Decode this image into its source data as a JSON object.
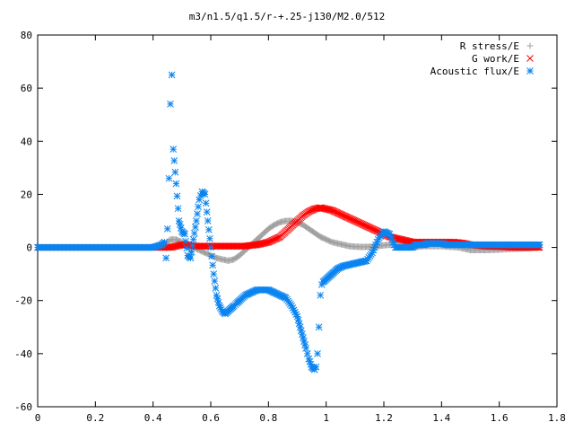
{
  "chart_data": {
    "type": "scatter",
    "title": "m3/n1.5/q1.5/r-+.25-j130/M2.0/512",
    "xlabel": "",
    "ylabel": "",
    "xlim": [
      0,
      1.8
    ],
    "ylim": [
      -60,
      80
    ],
    "xticks": [
      "0",
      "0.2",
      "0.4",
      "0.6",
      "0.8",
      "1",
      "1.2",
      "1.4",
      "1.6",
      "1.8"
    ],
    "yticks": [
      "80",
      "60",
      "40",
      "20",
      "0",
      "-20",
      "-40",
      "-60"
    ],
    "grid": false,
    "legend_position": "top-right",
    "series": [
      {
        "name": "R stress/E",
        "marker": "plus",
        "color": "#a0a0a0",
        "x": [
          0.0,
          0.1,
          0.2,
          0.3,
          0.4,
          0.44,
          0.46,
          0.48,
          0.5,
          0.52,
          0.54,
          0.56,
          0.58,
          0.6,
          0.62,
          0.64,
          0.66,
          0.68,
          0.7,
          0.72,
          0.74,
          0.76,
          0.78,
          0.8,
          0.82,
          0.84,
          0.86,
          0.88,
          0.9,
          0.92,
          0.94,
          0.96,
          0.98,
          1.0,
          1.02,
          1.04,
          1.06,
          1.08,
          1.1,
          1.12,
          1.14,
          1.16,
          1.18,
          1.2,
          1.22,
          1.24,
          1.26,
          1.28,
          1.3,
          1.32,
          1.34,
          1.36,
          1.38,
          1.4,
          1.42,
          1.44,
          1.46,
          1.48,
          1.5,
          1.55,
          1.6,
          1.65,
          1.7,
          1.74
        ],
        "y": [
          0,
          0,
          0,
          0,
          0,
          1,
          3,
          3,
          2,
          1,
          0,
          -1,
          -2,
          -3,
          -4,
          -4.5,
          -5,
          -4.5,
          -3,
          -1,
          1,
          3,
          5,
          7,
          8.5,
          9.5,
          10,
          10,
          9.5,
          8.5,
          7,
          5.5,
          4,
          3,
          2,
          1.5,
          1,
          0.5,
          0.3,
          0.2,
          0.2,
          0.3,
          0.5,
          0.8,
          1,
          1,
          0.8,
          0.5,
          0.3,
          0.3,
          0.5,
          0.5,
          0.5,
          0.5,
          0.3,
          0.2,
          0,
          -0.5,
          -1,
          -1,
          -0.8,
          -0.5,
          -0.3,
          0
        ]
      },
      {
        "name": "G work/E",
        "marker": "cross",
        "color": "#ff0000",
        "x": [
          0.0,
          0.1,
          0.2,
          0.3,
          0.4,
          0.44,
          0.46,
          0.48,
          0.5,
          0.52,
          0.54,
          0.56,
          0.58,
          0.6,
          0.62,
          0.64,
          0.66,
          0.68,
          0.7,
          0.72,
          0.74,
          0.76,
          0.78,
          0.8,
          0.82,
          0.84,
          0.86,
          0.88,
          0.9,
          0.92,
          0.94,
          0.96,
          0.98,
          1.0,
          1.02,
          1.04,
          1.06,
          1.08,
          1.1,
          1.12,
          1.14,
          1.16,
          1.18,
          1.2,
          1.22,
          1.24,
          1.26,
          1.28,
          1.3,
          1.32,
          1.34,
          1.36,
          1.38,
          1.4,
          1.42,
          1.44,
          1.46,
          1.48,
          1.5,
          1.55,
          1.6,
          1.65,
          1.7,
          1.74
        ],
        "y": [
          0,
          0,
          0,
          0,
          0,
          0,
          0,
          0.5,
          1,
          1,
          0.5,
          0.5,
          0.5,
          0.5,
          0.5,
          0.5,
          0.5,
          0.5,
          0.5,
          0.5,
          0.8,
          1,
          1.5,
          2,
          3,
          4,
          6,
          8,
          10,
          12,
          13.5,
          14.5,
          15,
          14.5,
          14,
          13,
          12,
          11,
          10,
          9,
          8,
          7,
          6,
          5,
          4,
          3.5,
          3,
          2.5,
          2,
          2,
          2,
          2,
          2,
          2,
          2,
          2,
          1.8,
          1.5,
          1,
          0.5,
          0.3,
          0,
          0,
          0
        ]
      },
      {
        "name": "Acoustic flux/E",
        "marker": "star",
        "color": "#0a84f0",
        "x": [
          0.0,
          0.1,
          0.2,
          0.3,
          0.4,
          0.43,
          0.44,
          0.445,
          0.45,
          0.455,
          0.46,
          0.465,
          0.47,
          0.48,
          0.49,
          0.5,
          0.51,
          0.52,
          0.53,
          0.54,
          0.55,
          0.56,
          0.57,
          0.58,
          0.59,
          0.6,
          0.61,
          0.62,
          0.63,
          0.64,
          0.65,
          0.66,
          0.67,
          0.68,
          0.69,
          0.7,
          0.72,
          0.74,
          0.76,
          0.78,
          0.8,
          0.82,
          0.84,
          0.86,
          0.88,
          0.9,
          0.91,
          0.92,
          0.93,
          0.94,
          0.95,
          0.96,
          0.965,
          0.97,
          0.975,
          0.98,
          0.985,
          0.99,
          1.0,
          1.01,
          1.02,
          1.03,
          1.04,
          1.06,
          1.08,
          1.1,
          1.12,
          1.14,
          1.16,
          1.18,
          1.2,
          1.22,
          1.24,
          1.26,
          1.28,
          1.3,
          1.31,
          1.32,
          1.33,
          1.34,
          1.35,
          1.36,
          1.38,
          1.4,
          1.42,
          1.44,
          1.46,
          1.48,
          1.5,
          1.55,
          1.6,
          1.65,
          1.7,
          1.74
        ],
        "y": [
          0,
          0,
          0,
          0,
          0,
          1,
          2,
          -4,
          7,
          26,
          54,
          65,
          37,
          24,
          10,
          6,
          5,
          -3,
          -4,
          3,
          10,
          18,
          21,
          20,
          10,
          0,
          -10,
          -18,
          -22,
          -24,
          -25,
          -24,
          -23,
          -22,
          -21,
          -20,
          -18,
          -17,
          -16,
          -16,
          -16,
          -17,
          -18,
          -19,
          -22,
          -26,
          -30,
          -34,
          -38,
          -42,
          -45,
          -46,
          -45,
          -40,
          -30,
          -18,
          -14,
          -13,
          -12,
          -11,
          -10,
          -9,
          -8,
          -7,
          -6.5,
          -6,
          -5.5,
          -5,
          -2,
          3,
          6,
          5,
          0,
          0,
          0,
          0,
          1,
          1,
          1,
          1,
          1.5,
          1.5,
          1.5,
          1.5,
          1,
          1,
          1,
          1,
          1,
          1,
          1,
          1,
          1,
          1
        ]
      }
    ]
  }
}
